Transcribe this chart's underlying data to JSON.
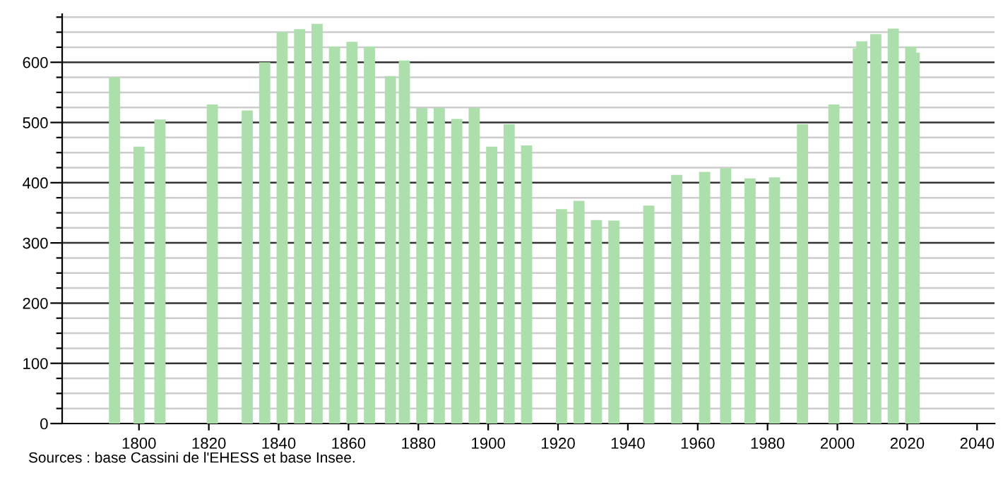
{
  "chart_data": {
    "type": "bar",
    "x": [
      1793,
      1800,
      1806,
      1821,
      1831,
      1836,
      1841,
      1846,
      1851,
      1856,
      1861,
      1866,
      1872,
      1876,
      1881,
      1886,
      1891,
      1896,
      1901,
      1906,
      1911,
      1921,
      1926,
      1931,
      1936,
      1946,
      1954,
      1962,
      1968,
      1975,
      1982,
      1990,
      1999,
      2006,
      2007,
      2011,
      2016,
      2021,
      2022
    ],
    "values": [
      575,
      460,
      505,
      530,
      520,
      600,
      650,
      655,
      664,
      626,
      634,
      626,
      577,
      603,
      524,
      524,
      506,
      524,
      460,
      497,
      462,
      356,
      370,
      338,
      337,
      362,
      413,
      418,
      424,
      407,
      409,
      497,
      530,
      623,
      635,
      647,
      656,
      626,
      616
    ],
    "color": "#addfad",
    "xlim": [
      1778,
      2045
    ],
    "xticks": [
      1800,
      1820,
      1840,
      1860,
      1880,
      1900,
      1920,
      1940,
      1960,
      1980,
      2000,
      2020,
      2040
    ],
    "ylim": [
      0,
      680
    ],
    "yticks": [
      0,
      {
        "value": 25,
        "label": null
      },
      {
        "value": 50,
        "label": null
      },
      {
        "value": 75,
        "label": null
      },
      100,
      {
        "value": 125,
        "label": null
      },
      {
        "value": 150,
        "label": null
      },
      {
        "value": 175,
        "label": null
      },
      200,
      {
        "value": 225,
        "label": null
      },
      {
        "value": 250,
        "label": null
      },
      {
        "value": 275,
        "label": null
      },
      300,
      {
        "value": 325,
        "label": null
      },
      {
        "value": 350,
        "label": null
      },
      {
        "value": 375,
        "label": null
      },
      400,
      {
        "value": 425,
        "label": null
      },
      {
        "value": 450,
        "label": null
      },
      {
        "value": 475,
        "label": null
      },
      500,
      {
        "value": 525,
        "label": null
      },
      {
        "value": 550,
        "label": null
      },
      {
        "value": 575,
        "label": null
      },
      600,
      {
        "value": 625,
        "label": null
      },
      {
        "value": 650,
        "label": null
      },
      {
        "value": 675,
        "label": null
      }
    ],
    "grid": "y",
    "annotations": [
      "Sources : base Cassini de l'EHESS et base Insee."
    ]
  }
}
